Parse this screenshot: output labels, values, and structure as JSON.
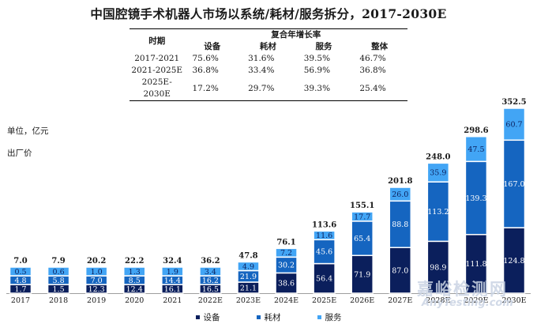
{
  "title": "中国腔镜手术机器人市场以系统/耗材/服务拆分，2017-2030E",
  "unit_label": "单位，亿元",
  "price_basis": "出厂价",
  "cagr_table": {
    "period_header": "时期",
    "group_header": "复合年增长率",
    "columns": [
      "设备",
      "耗材",
      "服务",
      "整体"
    ],
    "rows": [
      {
        "period": "2017-2021",
        "values": [
          "75.6%",
          "31.6%",
          "39.5%",
          "46.7%"
        ]
      },
      {
        "period": "2021-2025E",
        "values": [
          "36.8%",
          "33.4%",
          "56.9%",
          "36.8%"
        ]
      },
      {
        "period": "2025E-2030E",
        "values": [
          "17.2%",
          "29.7%",
          "39.3%",
          "25.4%"
        ]
      }
    ]
  },
  "chart_data": {
    "type": "bar",
    "stacked": true,
    "categories": [
      "2017",
      "2018",
      "2019",
      "2020",
      "2021",
      "2022E",
      "2023E",
      "2024E",
      "2025E",
      "2026E",
      "2027E",
      "2028E",
      "2029E",
      "2030E"
    ],
    "series": [
      {
        "name": "设备",
        "color": "#0b1f5c",
        "values": [
          1.7,
          1.5,
          12.3,
          12.4,
          16.1,
          16.5,
          21.1,
          38.6,
          56.4,
          71.9,
          87.0,
          98.9,
          111.8,
          124.8
        ]
      },
      {
        "name": "耗材",
        "color": "#1565c0",
        "values": [
          4.8,
          5.8,
          7.0,
          8.5,
          14.4,
          16.2,
          21.9,
          30.2,
          45.6,
          65.4,
          88.8,
          113.2,
          139.3,
          167.0
        ]
      },
      {
        "name": "服务",
        "color": "#42a5f5",
        "values": [
          0.5,
          0.6,
          1.0,
          1.3,
          1.9,
          3.4,
          4.9,
          7.2,
          11.6,
          17.7,
          26.0,
          35.9,
          47.5,
          60.7
        ]
      }
    ],
    "totals": [
      "7.0",
      "7.9",
      "20.2",
      "22.2",
      "32.4",
      "36.2",
      "47.8",
      "76.1",
      "113.6",
      "155.1",
      "201.8",
      "248.0",
      "298.6",
      "352.5"
    ],
    "legend_position": "bottom",
    "grid": false
  },
  "watermark": {
    "cn": "嘉峪检测网",
    "en": "AnyTesting.com"
  }
}
